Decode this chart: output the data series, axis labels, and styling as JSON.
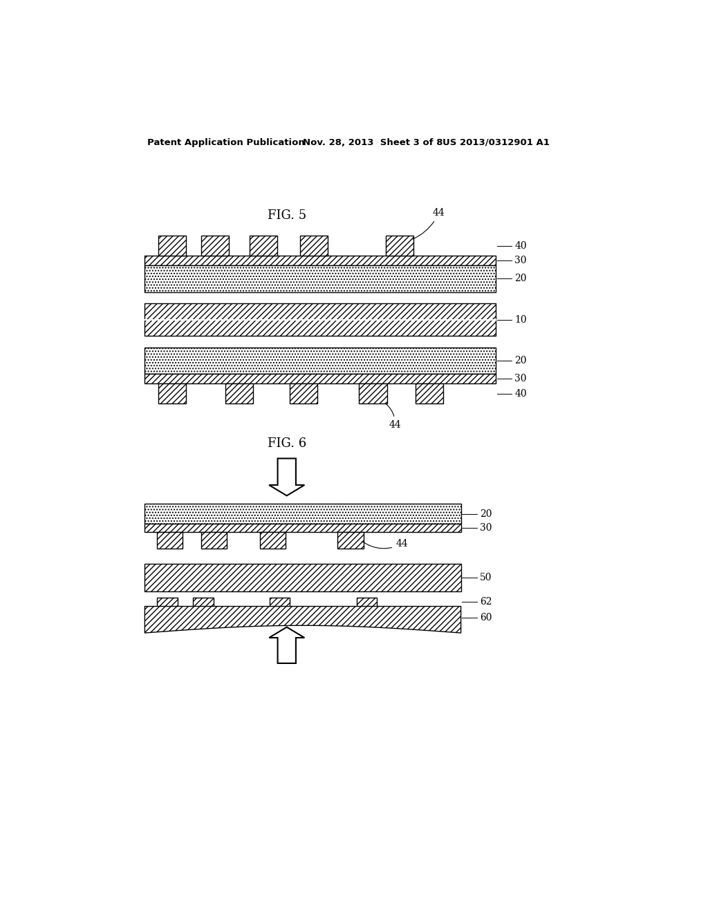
{
  "fig_width": 10.24,
  "fig_height": 13.2,
  "bg_color": "#ffffff",
  "header_left": "Patent Application Publication",
  "header_mid": "Nov. 28, 2013  Sheet 3 of 8",
  "header_right": "US 2013/0312901 A1",
  "fig5_label": "FIG. 5",
  "fig6_label": "FIG. 6"
}
